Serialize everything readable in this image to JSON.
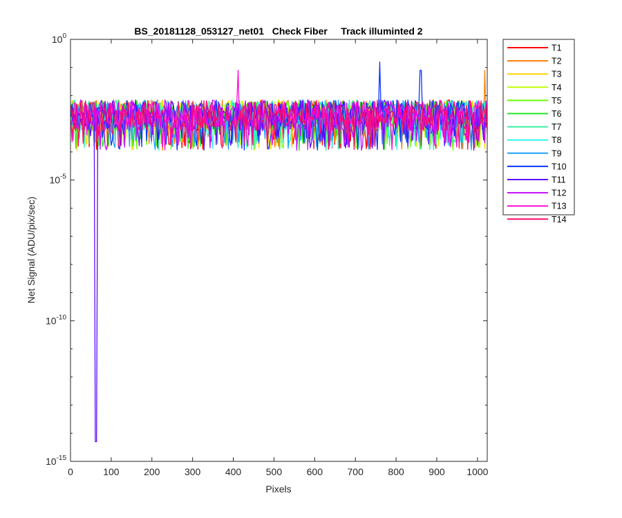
{
  "chart_data": {
    "type": "line",
    "title": "BS_20181128_053127_net01   Check Fiber     Track illuminted 2",
    "xlabel": "Pixels",
    "ylabel": "Net Signal (ADU/pix/sec)",
    "xlim": [
      0,
      1024
    ],
    "yscale": "log",
    "ylim_exponents": [
      -15,
      0
    ],
    "x_ticks": [
      "0",
      "100",
      "200",
      "300",
      "400",
      "500",
      "600",
      "700",
      "800",
      "900",
      "1000"
    ],
    "y_ticks": [
      {
        "base": "10",
        "exp": "-15"
      },
      {
        "base": "10",
        "exp": "-10"
      },
      {
        "base": "10",
        "exp": "-5"
      },
      {
        "base": "10",
        "exp": "0"
      }
    ],
    "grid": false,
    "legend_position": "outside-top-right",
    "series": [
      {
        "name": "T1",
        "color": "#ff0000"
      },
      {
        "name": "T2",
        "color": "#ff7f00"
      },
      {
        "name": "T3",
        "color": "#ffd400"
      },
      {
        "name": "T4",
        "color": "#bfff00"
      },
      {
        "name": "T5",
        "color": "#6aff00"
      },
      {
        "name": "T6",
        "color": "#1fe61f"
      },
      {
        "name": "T7",
        "color": "#36f0a0"
      },
      {
        "name": "T8",
        "color": "#2ef5ee"
      },
      {
        "name": "T9",
        "color": "#1aa3ff"
      },
      {
        "name": "T10",
        "color": "#0a33ff"
      },
      {
        "name": "T11",
        "color": "#5a0aff"
      },
      {
        "name": "T12",
        "color": "#c20aff"
      },
      {
        "name": "T13",
        "color": "#ff0ad8"
      },
      {
        "name": "T14",
        "color": "#ff0a6b"
      }
    ],
    "typical_range_exponents": [
      -4,
      -2
    ],
    "outliers": [
      {
        "series": "T11",
        "x": 62,
        "log10_y": -14.3
      },
      {
        "series": "T10",
        "x": 760,
        "log10_y": -0.8
      },
      {
        "series": "T10",
        "x": 860,
        "log10_y": -1.1
      },
      {
        "series": "T13",
        "x": 412,
        "log10_y": -1.1
      },
      {
        "series": "T2",
        "x": 1018,
        "log10_y": -1.1
      }
    ]
  }
}
